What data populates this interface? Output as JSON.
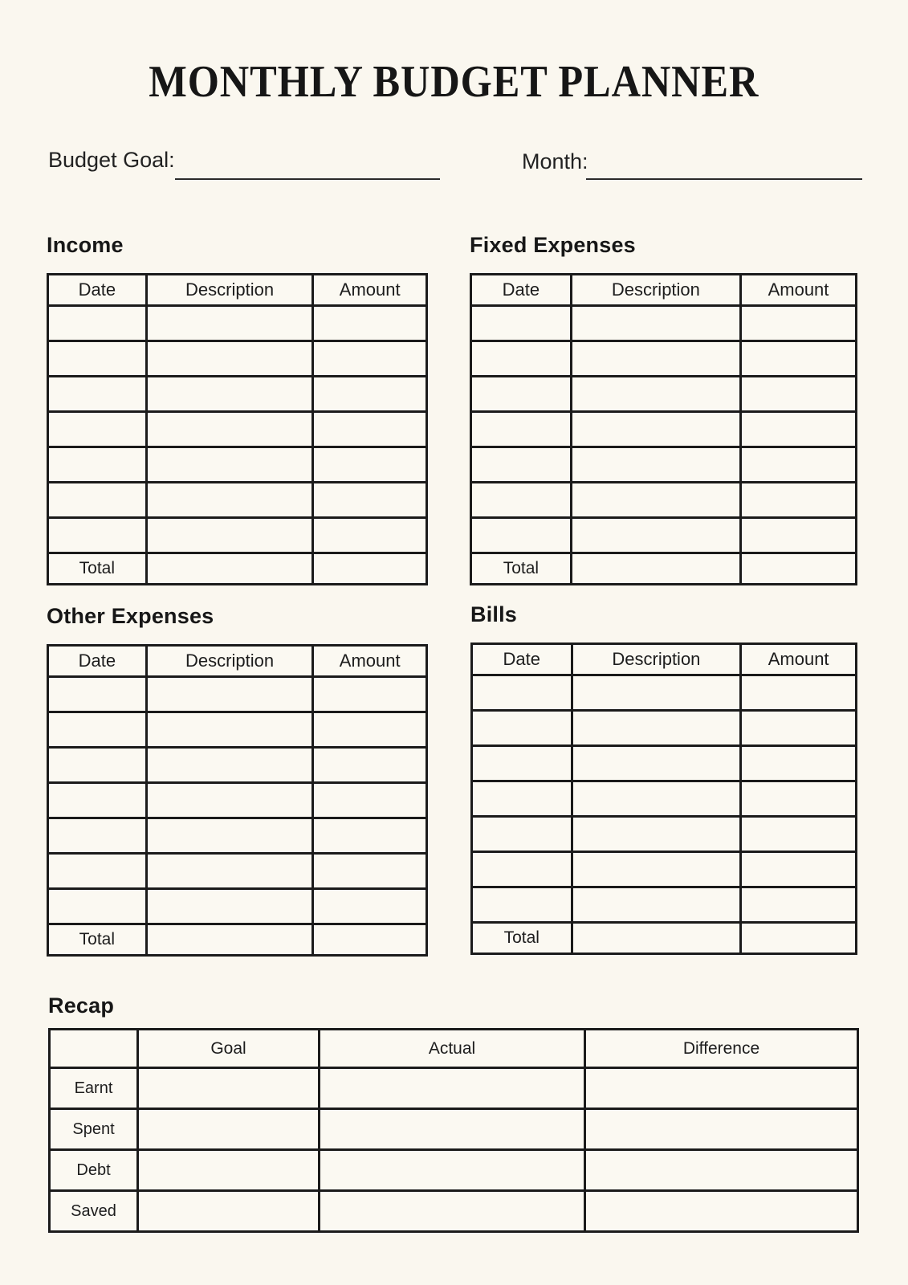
{
  "page": {
    "title": "MONTHLY BUDGET PLANNER",
    "budget_goal_label": "Budget Goal:",
    "month_label": "Month:",
    "background_color": "#FAF7EF",
    "line_color": "#1B1B1B"
  },
  "tables": {
    "columns": [
      "Date",
      "Description",
      "Amount"
    ],
    "total_label": "Total",
    "empty_data_rows_per_table": 7,
    "sections": [
      {
        "id": "income",
        "title": "Income"
      },
      {
        "id": "fixed-expenses",
        "title": "Fixed Expenses"
      },
      {
        "id": "other-expenses",
        "title": "Other Expenses"
      },
      {
        "id": "bills",
        "title": "Bills"
      }
    ]
  },
  "recap": {
    "title": "Recap",
    "columns": [
      "Goal",
      "Actual",
      "Difference"
    ],
    "rows": [
      "Earnt",
      "Spent",
      "Debt",
      "Saved"
    ]
  }
}
